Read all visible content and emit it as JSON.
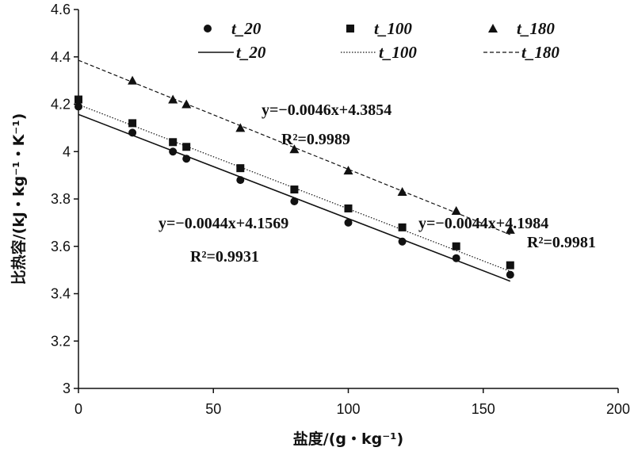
{
  "chart_data": {
    "type": "scatter",
    "xlabel": "盐度/(g・kg⁻¹)",
    "ylabel": "比热容/(kJ・kg⁻¹・K⁻¹)",
    "xlim": [
      0,
      200
    ],
    "ylim": [
      3,
      4.6
    ],
    "xticks": [
      "0",
      "50",
      "100",
      "150",
      "200"
    ],
    "yticks": [
      "3",
      "3.2",
      "3.4",
      "3.6",
      "3.8",
      "4",
      "4.2",
      "4.4",
      "4.6"
    ],
    "grid": false,
    "legend_position": "top",
    "series": [
      {
        "name": "t_20",
        "marker": "circle",
        "points": [
          [
            0,
            4.19
          ],
          [
            20,
            4.08
          ],
          [
            35,
            4.0
          ],
          [
            40,
            3.97
          ],
          [
            60,
            3.88
          ],
          [
            80,
            3.79
          ],
          [
            100,
            3.7
          ],
          [
            120,
            3.62
          ],
          [
            140,
            3.55
          ],
          [
            160,
            3.48
          ]
        ]
      },
      {
        "name": "t_100",
        "marker": "square",
        "points": [
          [
            0,
            4.22
          ],
          [
            20,
            4.12
          ],
          [
            35,
            4.04
          ],
          [
            40,
            4.02
          ],
          [
            60,
            3.93
          ],
          [
            80,
            3.84
          ],
          [
            100,
            3.76
          ],
          [
            120,
            3.68
          ],
          [
            140,
            3.6
          ],
          [
            160,
            3.52
          ]
        ]
      },
      {
        "name": "t_180",
        "marker": "triangle",
        "points": [
          [
            20,
            4.3
          ],
          [
            35,
            4.22
          ],
          [
            40,
            4.2
          ],
          [
            60,
            4.1
          ],
          [
            80,
            4.01
          ],
          [
            100,
            3.92
          ],
          [
            120,
            3.83
          ],
          [
            140,
            3.75
          ],
          [
            160,
            3.67
          ]
        ]
      }
    ],
    "fits": [
      {
        "name": "t_20",
        "style": "solid",
        "slope": -0.0044,
        "intercept": 4.1569,
        "x_range": [
          0,
          160
        ],
        "equation": "y=−0.0044x+4.1569",
        "r2": "R²=0.9931"
      },
      {
        "name": "t_100",
        "style": "dotted",
        "slope": -0.0044,
        "intercept": 4.1984,
        "x_range": [
          0,
          160
        ],
        "equation": "y=−0.0044x+4.1984",
        "r2": "R²=0.9981"
      },
      {
        "name": "t_180",
        "style": "dashed",
        "slope": -0.0046,
        "intercept": 4.3854,
        "x_range": [
          0,
          160
        ],
        "equation": "y=−0.0046x+4.3854",
        "r2": "R²=0.9989"
      }
    ]
  }
}
